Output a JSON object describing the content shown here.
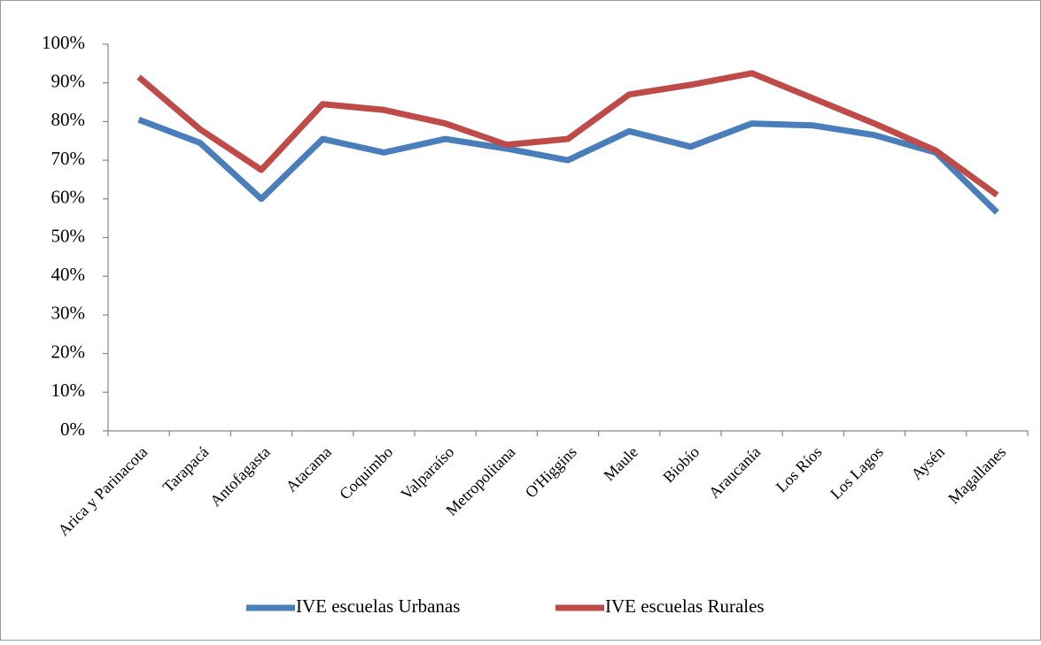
{
  "chart_data": {
    "type": "line",
    "categories": [
      "Arica y Parinacota",
      "Tarapacá",
      "Antofagasta",
      "Atacama",
      "Coquimbo",
      "Valparaíso",
      "Metropolitana",
      "O'Higgins",
      "Maule",
      "Biobío",
      "Araucanía",
      "Los Ríos",
      "Los Lagos",
      "Aysén",
      "Magallanes"
    ],
    "series": [
      {
        "name": "IVE escuelas Urbanas",
        "color": "#4a7ebb",
        "values": [
          80.5,
          74.5,
          60,
          75.5,
          72,
          75.5,
          73,
          70,
          77.5,
          73.5,
          79.5,
          79,
          76.5,
          72,
          56.5
        ]
      },
      {
        "name": "IVE escuelas Rurales",
        "color": "#be4b48",
        "values": [
          91.5,
          78,
          67.5,
          84.5,
          83,
          79.5,
          74,
          75.5,
          87,
          89.5,
          92.5,
          86,
          79.5,
          72.5,
          61
        ]
      }
    ],
    "ylim": [
      0,
      100
    ],
    "yticks": [
      {
        "value": 0,
        "label": "0%"
      },
      {
        "value": 10,
        "label": "10%"
      },
      {
        "value": 20,
        "label": "20%"
      },
      {
        "value": 30,
        "label": "30%"
      },
      {
        "value": 40,
        "label": "40%"
      },
      {
        "value": 50,
        "label": "50%"
      },
      {
        "value": 60,
        "label": "60%"
      },
      {
        "value": 70,
        "label": "70%"
      },
      {
        "value": 80,
        "label": "80%"
      },
      {
        "value": 90,
        "label": "90%"
      },
      {
        "value": 100,
        "label": "100%"
      }
    ],
    "legend": "bottom"
  }
}
